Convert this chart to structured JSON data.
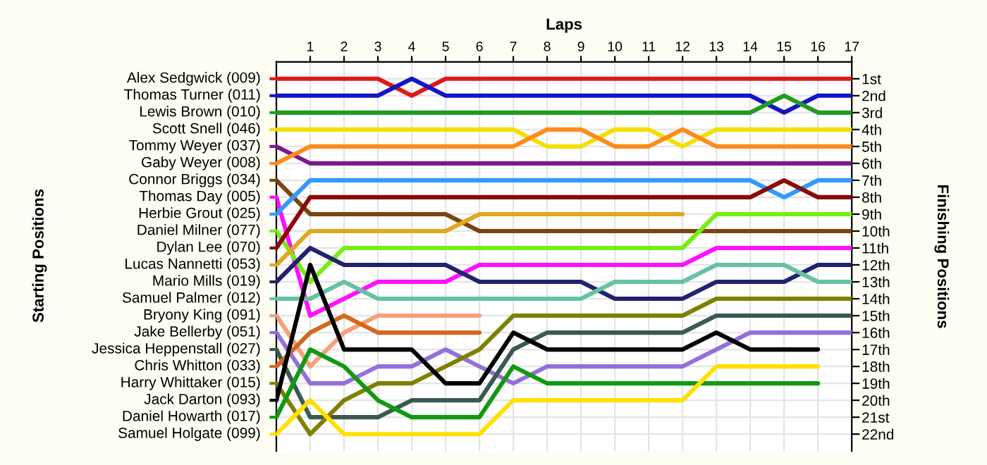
{
  "chart_data": {
    "type": "line",
    "xlabel": "Laps",
    "ylabel": "Finishing Positions",
    "annotations": [
      "Starting Positions"
    ],
    "x": [
      0,
      1,
      2,
      3,
      4,
      5,
      6,
      7,
      8,
      9,
      10,
      11,
      12,
      13,
      14,
      15,
      16,
      17
    ],
    "xlim": [
      0,
      17
    ],
    "xticks": [
      1,
      2,
      3,
      4,
      5,
      6,
      7,
      8,
      9,
      10,
      11,
      12,
      13,
      14,
      15,
      16,
      17
    ],
    "ylim": [
      23,
      0
    ],
    "yticks": [
      {
        "value": 1,
        "label": "1st"
      },
      {
        "value": 2,
        "label": "2nd"
      },
      {
        "value": 3,
        "label": "3rd"
      },
      {
        "value": 4,
        "label": "4th"
      },
      {
        "value": 5,
        "label": "5th"
      },
      {
        "value": 6,
        "label": "6th"
      },
      {
        "value": 7,
        "label": "7th"
      },
      {
        "value": 8,
        "label": "8th"
      },
      {
        "value": 9,
        "label": "9th"
      },
      {
        "value": 10,
        "label": "10th"
      },
      {
        "value": 11,
        "label": "11th"
      },
      {
        "value": 12,
        "label": "12th"
      },
      {
        "value": 13,
        "label": "13th"
      },
      {
        "value": 14,
        "label": "14th"
      },
      {
        "value": 15,
        "label": "15th"
      },
      {
        "value": 16,
        "label": "16th"
      },
      {
        "value": 17,
        "label": "17th"
      },
      {
        "value": 18,
        "label": "18th"
      },
      {
        "value": 19,
        "label": "19th"
      },
      {
        "value": 20,
        "label": "20th"
      },
      {
        "value": 21,
        "label": "21st"
      },
      {
        "value": 22,
        "label": "22nd"
      }
    ],
    "grid": true,
    "legend": "left",
    "marker": "none",
    "line_style": "solid",
    "series": [
      {
        "name": "Alex Sedgwick (009)",
        "color": "#e01818",
        "values": [
          1,
          1,
          1,
          1,
          2,
          1,
          1,
          1,
          1,
          1,
          1,
          1,
          1,
          1,
          1,
          1,
          1,
          1
        ]
      },
      {
        "name": "Thomas Turner (011)",
        "color": "#1414c8",
        "values": [
          2,
          2,
          2,
          2,
          1,
          2,
          2,
          2,
          2,
          2,
          2,
          2,
          2,
          2,
          2,
          3,
          2,
          2
        ]
      },
      {
        "name": "Lewis Brown (010)",
        "color": "#229a22",
        "values": [
          3,
          3,
          3,
          3,
          3,
          3,
          3,
          3,
          3,
          3,
          3,
          3,
          3,
          3,
          3,
          2,
          3,
          3
        ]
      },
      {
        "name": "Scott Snell (046)",
        "color": "#f2e000",
        "values": [
          4,
          4,
          4,
          4,
          4,
          4,
          4,
          4,
          5,
          5,
          4,
          4,
          5,
          4,
          4,
          4,
          4,
          4
        ]
      },
      {
        "name": "Tommy Weyer (037)",
        "color": "#7a1a8a",
        "values": [
          5,
          6,
          6,
          6,
          6,
          6,
          6,
          6,
          6,
          6,
          6,
          6,
          6,
          6,
          6,
          6,
          6,
          6
        ]
      },
      {
        "name": "Gaby Weyer (008)",
        "color": "#ff8a1a",
        "values": [
          6,
          5,
          5,
          5,
          5,
          5,
          5,
          5,
          4,
          4,
          5,
          5,
          4,
          5,
          5,
          5,
          5,
          5
        ]
      },
      {
        "name": "Connor Briggs (034)",
        "color": "#7a4510",
        "values": [
          7,
          9,
          9,
          9,
          9,
          9,
          10,
          10,
          10,
          10,
          10,
          10,
          10,
          10,
          10,
          10,
          10,
          10
        ]
      },
      {
        "name": "Thomas Day (005)",
        "color": "#ff10ff",
        "values": [
          8,
          15,
          14,
          13,
          13,
          13,
          12,
          12,
          12,
          12,
          12,
          12,
          12,
          11,
          11,
          11,
          11,
          11
        ]
      },
      {
        "name": "Herbie Grout (025)",
        "color": "#3399ff",
        "values": [
          9,
          7,
          7,
          7,
          7,
          7,
          7,
          7,
          7,
          7,
          7,
          7,
          7,
          7,
          7,
          8,
          7,
          7
        ]
      },
      {
        "name": "Daniel Milner (077)",
        "color": "#77ee11",
        "values": [
          10,
          13,
          11,
          11,
          11,
          11,
          11,
          11,
          11,
          11,
          11,
          11,
          11,
          9,
          9,
          9,
          9,
          9
        ]
      },
      {
        "name": "Dylan Lee (070)",
        "color": "#8b0a0a",
        "values": [
          11,
          8,
          8,
          8,
          8,
          8,
          8,
          8,
          8,
          8,
          8,
          8,
          8,
          8,
          8,
          7,
          8,
          8
        ]
      },
      {
        "name": "Lucas Nannetti (053)",
        "color": "#e0a820",
        "values": [
          12,
          10,
          10,
          10,
          10,
          10,
          9,
          9,
          9,
          9,
          9,
          9,
          9,
          null,
          null,
          null,
          null,
          null
        ]
      },
      {
        "name": "Mario Mills (019)",
        "color": "#22226e",
        "values": [
          13,
          11,
          12,
          12,
          12,
          12,
          13,
          13,
          13,
          13,
          14,
          14,
          14,
          13,
          13,
          13,
          12,
          12
        ]
      },
      {
        "name": "Samuel Palmer (012)",
        "color": "#66c2a5",
        "values": [
          14,
          14,
          13,
          14,
          14,
          14,
          14,
          14,
          14,
          14,
          13,
          13,
          13,
          12,
          12,
          12,
          13,
          13
        ]
      },
      {
        "name": "Bryony King (091)",
        "color": "#f4a07a",
        "values": [
          15,
          18,
          16,
          15,
          15,
          15,
          15,
          null,
          null,
          null,
          null,
          null,
          null,
          null,
          null,
          null,
          null,
          null
        ]
      },
      {
        "name": "Jake Bellerby (051)",
        "color": "#9370db",
        "values": [
          16,
          19,
          19,
          18,
          18,
          17,
          18,
          19,
          18,
          18,
          18,
          18,
          18,
          17,
          16,
          16,
          16,
          16
        ]
      },
      {
        "name": "Jessica Heppenstall (027)",
        "color": "#3a5a50",
        "values": [
          17,
          21,
          21,
          21,
          20,
          20,
          20,
          17,
          16,
          16,
          16,
          16,
          16,
          15,
          15,
          15,
          15,
          15
        ]
      },
      {
        "name": "Chris Whitton (033)",
        "color": "#d2691e",
        "values": [
          18,
          16,
          15,
          16,
          16,
          16,
          16,
          null,
          null,
          null,
          null,
          null,
          null,
          null,
          null,
          null,
          null,
          null
        ]
      },
      {
        "name": "Harry Whittaker (015)",
        "color": "#808000",
        "values": [
          19,
          22,
          20,
          19,
          19,
          18,
          17,
          15,
          15,
          15,
          15,
          15,
          15,
          14,
          14,
          14,
          14,
          14
        ]
      },
      {
        "name": "Jack Darton (093)",
        "color": "#000000",
        "values": [
          20,
          12,
          17,
          17,
          17,
          19,
          19,
          16,
          17,
          17,
          17,
          17,
          17,
          16,
          17,
          17,
          17,
          null
        ]
      },
      {
        "name": "Daniel Howarth (017)",
        "color": "#119911",
        "values": [
          21,
          17,
          18,
          20,
          21,
          21,
          21,
          18,
          19,
          19,
          19,
          19,
          19,
          19,
          19,
          19,
          19,
          null
        ]
      },
      {
        "name": "Samuel Holgate (099)",
        "color": "#ffe000",
        "values": [
          22,
          20,
          22,
          22,
          22,
          22,
          22,
          20,
          20,
          20,
          20,
          20,
          20,
          18,
          18,
          18,
          18,
          null
        ]
      }
    ]
  }
}
